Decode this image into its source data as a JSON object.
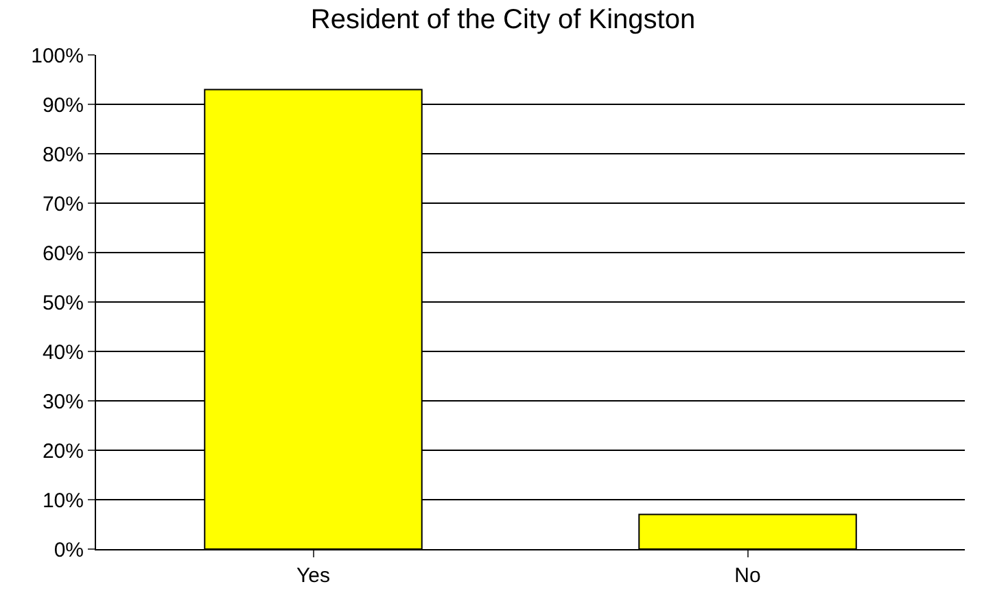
{
  "chart_data": {
    "type": "bar",
    "title": "Resident of the City of Kingston",
    "categories": [
      "Yes",
      "No"
    ],
    "values": [
      93,
      7
    ],
    "color": "#ffff00",
    "ylim": [
      0,
      100
    ],
    "yticks": [
      {
        "value": 0,
        "label": "0%"
      },
      {
        "value": 10,
        "label": "10%"
      },
      {
        "value": 20,
        "label": "20%"
      },
      {
        "value": 30,
        "label": "30%"
      },
      {
        "value": 40,
        "label": "40%"
      },
      {
        "value": 50,
        "label": "50%"
      },
      {
        "value": 60,
        "label": "60%"
      },
      {
        "value": 70,
        "label": "70%"
      },
      {
        "value": 80,
        "label": "80%"
      },
      {
        "value": 90,
        "label": "90%"
      },
      {
        "value": 100,
        "label": "100%"
      }
    ],
    "grid": "y"
  }
}
